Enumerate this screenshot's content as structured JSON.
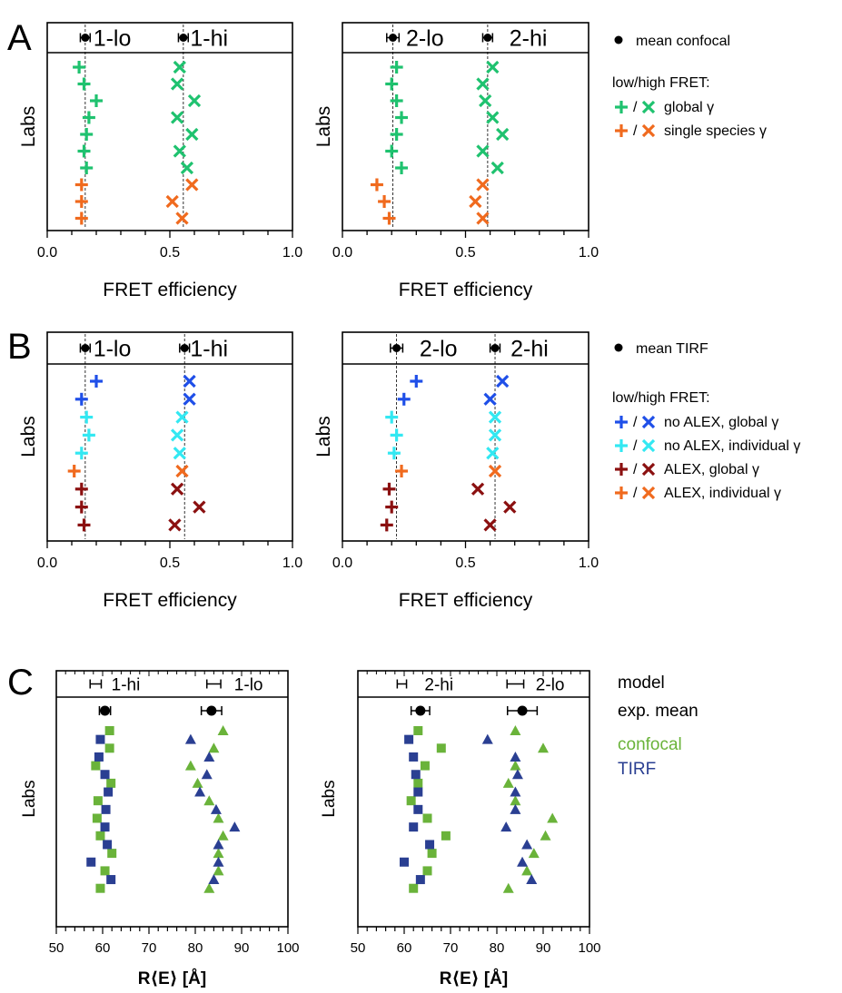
{
  "colors": {
    "green": "#1fc26f",
    "blue": "#1f4fe8",
    "cyan": "#33e8f2",
    "darkred": "#8b1010",
    "orange": "#f06a1e",
    "olive": "#6ab33a",
    "navy": "#2a3f92",
    "black": "#000000"
  },
  "panels": {
    "A": {
      "letter": "A",
      "legend": {
        "mean_label": "mean confocal",
        "heading": "low/high FRET:",
        "entries": [
          {
            "color_key": "green",
            "sep": "/",
            "label": "global γ"
          },
          {
            "color_key": "orange",
            "sep": "/",
            "label": "single species γ"
          }
        ]
      }
    },
    "B": {
      "letter": "B",
      "legend": {
        "mean_label": "mean TIRF",
        "heading": "low/high FRET:",
        "entries": [
          {
            "color_key": "blue",
            "sep": "/",
            "label": "no ALEX, global γ"
          },
          {
            "color_key": "cyan",
            "sep": "/",
            "label": "no ALEX, individual γ"
          },
          {
            "color_key": "darkred",
            "sep": "/",
            "label": "ALEX, global γ"
          },
          {
            "color_key": "orange",
            "sep": "/",
            "label": "ALEX, individual γ"
          }
        ]
      }
    },
    "C": {
      "letter": "C",
      "legend": {
        "model": "model",
        "exp_mean": "exp. mean",
        "confocal": "confocal",
        "tirf": "TIRF"
      }
    }
  },
  "chart_data": [
    {
      "id": "A1",
      "panel": "A",
      "type": "scatter",
      "xlabel": "FRET efficiency",
      "ylabel": "Labs",
      "xlim": [
        0,
        1
      ],
      "xticks": [
        "0.0",
        "0.5",
        "1.0"
      ],
      "header_labels": [
        {
          "text": "1-lo",
          "x": 0.265
        },
        {
          "text": "1-hi",
          "x": 0.66
        }
      ],
      "means": [
        {
          "x": 0.155,
          "err": 0.02
        },
        {
          "x": 0.555,
          "err": 0.02
        }
      ],
      "series": [
        {
          "marker": "plus",
          "colors": [
            "green",
            "green",
            "green",
            "green",
            "green",
            "green",
            "green",
            "orange",
            "orange",
            "orange"
          ],
          "values": [
            0.13,
            0.15,
            0.2,
            0.17,
            0.16,
            0.15,
            0.16,
            0.14,
            0.14,
            0.14
          ]
        },
        {
          "marker": "cross",
          "colors": [
            "green",
            "green",
            "green",
            "green",
            "green",
            "green",
            "green",
            "orange",
            "orange",
            "orange"
          ],
          "values": [
            0.54,
            0.53,
            0.6,
            0.53,
            0.59,
            0.54,
            0.57,
            0.59,
            0.51,
            0.55
          ]
        }
      ]
    },
    {
      "id": "A2",
      "panel": "A",
      "type": "scatter",
      "xlabel": "FRET efficiency",
      "ylabel": "Labs",
      "xlim": [
        0,
        1
      ],
      "xticks": [
        "0.0",
        "0.5",
        "1.0"
      ],
      "header_labels": [
        {
          "text": "2-lo",
          "x": 0.335
        },
        {
          "text": "2-hi",
          "x": 0.755
        }
      ],
      "means": [
        {
          "x": 0.205,
          "err": 0.025
        },
        {
          "x": 0.59,
          "err": 0.02
        }
      ],
      "series": [
        {
          "marker": "plus",
          "colors": [
            "green",
            "green",
            "green",
            "green",
            "green",
            "green",
            "green",
            "orange",
            "orange",
            "orange"
          ],
          "values": [
            0.22,
            0.2,
            0.22,
            0.24,
            0.22,
            0.2,
            0.24,
            0.14,
            0.17,
            0.19
          ]
        },
        {
          "marker": "cross",
          "colors": [
            "green",
            "green",
            "green",
            "green",
            "green",
            "green",
            "green",
            "orange",
            "orange",
            "orange"
          ],
          "values": [
            0.61,
            0.57,
            0.58,
            0.61,
            0.65,
            0.57,
            0.63,
            0.57,
            0.54,
            0.57
          ]
        }
      ]
    },
    {
      "id": "B1",
      "panel": "B",
      "type": "scatter",
      "xlabel": "FRET efficiency",
      "ylabel": "Labs",
      "xlim": [
        0,
        1
      ],
      "xticks": [
        "0.0",
        "0.5",
        "1.0"
      ],
      "header_labels": [
        {
          "text": "1-lo",
          "x": 0.265
        },
        {
          "text": "1-hi",
          "x": 0.66
        }
      ],
      "means": [
        {
          "x": 0.155,
          "err": 0.02
        },
        {
          "x": 0.56,
          "err": 0.02
        }
      ],
      "series": [
        {
          "marker": "plus",
          "colors": [
            "blue",
            "blue",
            "cyan",
            "cyan",
            "cyan",
            "orange",
            "darkred",
            "darkred",
            "darkred"
          ],
          "values": [
            0.2,
            0.14,
            0.16,
            0.17,
            0.14,
            0.11,
            0.14,
            0.14,
            0.15
          ]
        },
        {
          "marker": "cross",
          "colors": [
            "blue",
            "blue",
            "cyan",
            "cyan",
            "cyan",
            "orange",
            "darkred",
            "darkred",
            "darkred"
          ],
          "values": [
            0.58,
            0.58,
            0.55,
            0.53,
            0.54,
            0.55,
            0.53,
            0.62,
            0.52
          ]
        }
      ]
    },
    {
      "id": "B2",
      "panel": "B",
      "type": "scatter",
      "xlabel": "FRET efficiency",
      "ylabel": "Labs",
      "xlim": [
        0,
        1
      ],
      "xticks": [
        "0.0",
        "0.5",
        "1.0"
      ],
      "header_labels": [
        {
          "text": "2-lo",
          "x": 0.39
        },
        {
          "text": "2-hi",
          "x": 0.76
        }
      ],
      "means": [
        {
          "x": 0.22,
          "err": 0.025
        },
        {
          "x": 0.62,
          "err": 0.02
        }
      ],
      "series": [
        {
          "marker": "plus",
          "colors": [
            "blue",
            "blue",
            "cyan",
            "cyan",
            "cyan",
            "orange",
            "darkred",
            "darkred",
            "darkred"
          ],
          "values": [
            0.3,
            0.25,
            0.2,
            0.22,
            0.21,
            0.24,
            0.19,
            0.2,
            0.18
          ]
        },
        {
          "marker": "cross",
          "colors": [
            "blue",
            "blue",
            "cyan",
            "cyan",
            "cyan",
            "orange",
            "darkred",
            "darkred",
            "darkred"
          ],
          "values": [
            0.65,
            0.6,
            0.62,
            0.62,
            0.61,
            0.62,
            0.55,
            0.68,
            0.6
          ]
        }
      ]
    },
    {
      "id": "C1",
      "panel": "C",
      "type": "scatter",
      "xlabel": "R⟨E⟩ [Å]",
      "ylabel": "Labs",
      "xlim": [
        50,
        100
      ],
      "xticks": [
        "50",
        "60",
        "70",
        "80",
        "90",
        "100"
      ],
      "header_labels": [
        {
          "text": "1-hi",
          "x": 65
        },
        {
          "text": "1-lo",
          "x": 91.5
        }
      ],
      "model": [
        {
          "x": 58.5,
          "err": 1.2
        },
        {
          "x": 84,
          "err": 1.5
        }
      ],
      "exp_mean": [
        {
          "x": 60.5,
          "err": 1.2
        },
        {
          "x": 83.5,
          "err": 2.2
        }
      ],
      "squares": [
        {
          "color_key": "olive",
          "values": [
            61.5,
            61.5,
            58.5,
            61.8,
            59,
            58.8,
            59.5,
            62,
            60.5,
            59.5
          ]
        },
        {
          "color_key": "navy",
          "values": [
            59.5,
            59.2,
            60.5,
            61.2,
            60.7,
            60.5,
            61,
            57.5,
            61.8
          ]
        }
      ],
      "triangles": [
        {
          "color_key": "olive",
          "values": [
            86,
            84,
            79,
            80.5,
            83,
            85,
            86,
            85,
            85,
            83
          ]
        },
        {
          "color_key": "navy",
          "values": [
            79,
            83,
            82.5,
            81,
            84.5,
            88.5,
            85,
            85,
            84
          ]
        }
      ]
    },
    {
      "id": "C2",
      "panel": "C",
      "type": "scatter",
      "xlabel": "R⟨E⟩ [Å]",
      "ylabel": "Labs",
      "xlim": [
        50,
        100
      ],
      "xticks": [
        "50",
        "60",
        "70",
        "80",
        "90",
        "100"
      ],
      "header_labels": [
        {
          "text": "2-hi",
          "x": 67.5
        },
        {
          "text": "2-lo",
          "x": 91.5
        }
      ],
      "model": [
        {
          "x": 59.5,
          "err": 1
        },
        {
          "x": 84,
          "err": 1.8
        }
      ],
      "exp_mean": [
        {
          "x": 63.5,
          "err": 2
        },
        {
          "x": 85.5,
          "err": 3.2
        }
      ],
      "squares": [
        {
          "color_key": "olive",
          "values": [
            63,
            68,
            64.5,
            63,
            61.5,
            65,
            69,
            66,
            65,
            62
          ]
        },
        {
          "color_key": "navy",
          "values": [
            61,
            62,
            62.5,
            63,
            63,
            62,
            65.5,
            60,
            63.5
          ]
        }
      ],
      "triangles": [
        {
          "color_key": "olive",
          "values": [
            84,
            90,
            84,
            82.5,
            84,
            92,
            90.5,
            88,
            86.5,
            82.5
          ]
        },
        {
          "color_key": "navy",
          "values": [
            78,
            84,
            84.5,
            84,
            84,
            82,
            86.5,
            85.5,
            87.5
          ]
        }
      ]
    }
  ]
}
